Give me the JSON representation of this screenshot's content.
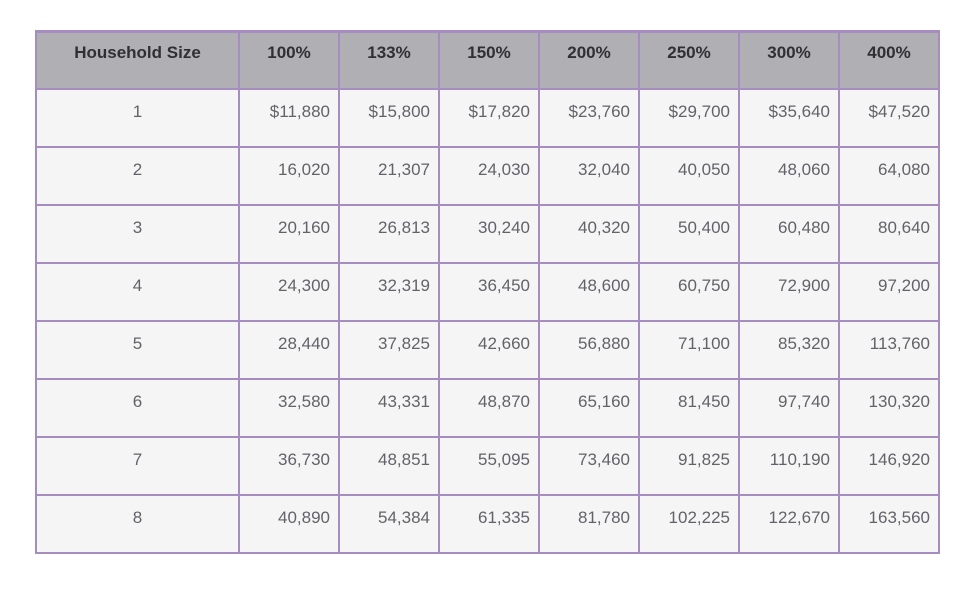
{
  "colors": {
    "border": "#a78dbf",
    "header-bg": "#b0b0b4",
    "header-text": "#303034",
    "cell-bg": "#f6f5f6",
    "cell-text": "#626268",
    "page-bg": "#ffffff"
  },
  "chart_data": {
    "type": "table",
    "title": "",
    "columns": [
      "Household Size",
      "100%",
      "133%",
      "150%",
      "200%",
      "250%",
      "300%",
      "400%"
    ],
    "rows": [
      [
        "1",
        "$11,880",
        "$15,800",
        "$17,820",
        "$23,760",
        "$29,700",
        "$35,640",
        "$47,520"
      ],
      [
        "2",
        "16,020",
        "21,307",
        "24,030",
        "32,040",
        "40,050",
        "48,060",
        "64,080"
      ],
      [
        "3",
        "20,160",
        "26,813",
        "30,240",
        "40,320",
        "50,400",
        "60,480",
        "80,640"
      ],
      [
        "4",
        "24,300",
        "32,319",
        "36,450",
        "48,600",
        "60,750",
        "72,900",
        "97,200"
      ],
      [
        "5",
        "28,440",
        "37,825",
        "42,660",
        "56,880",
        "71,100",
        "85,320",
        "113,760"
      ],
      [
        "6",
        "32,580",
        "43,331",
        "48,870",
        "65,160",
        "81,450",
        "97,740",
        "130,320"
      ],
      [
        "7",
        "36,730",
        "48,851",
        "55,095",
        "73,460",
        "91,825",
        "110,190",
        "146,920"
      ],
      [
        "8",
        "40,890",
        "54,384",
        "61,335",
        "81,780",
        "102,225",
        "122,670",
        "163,560"
      ]
    ]
  }
}
